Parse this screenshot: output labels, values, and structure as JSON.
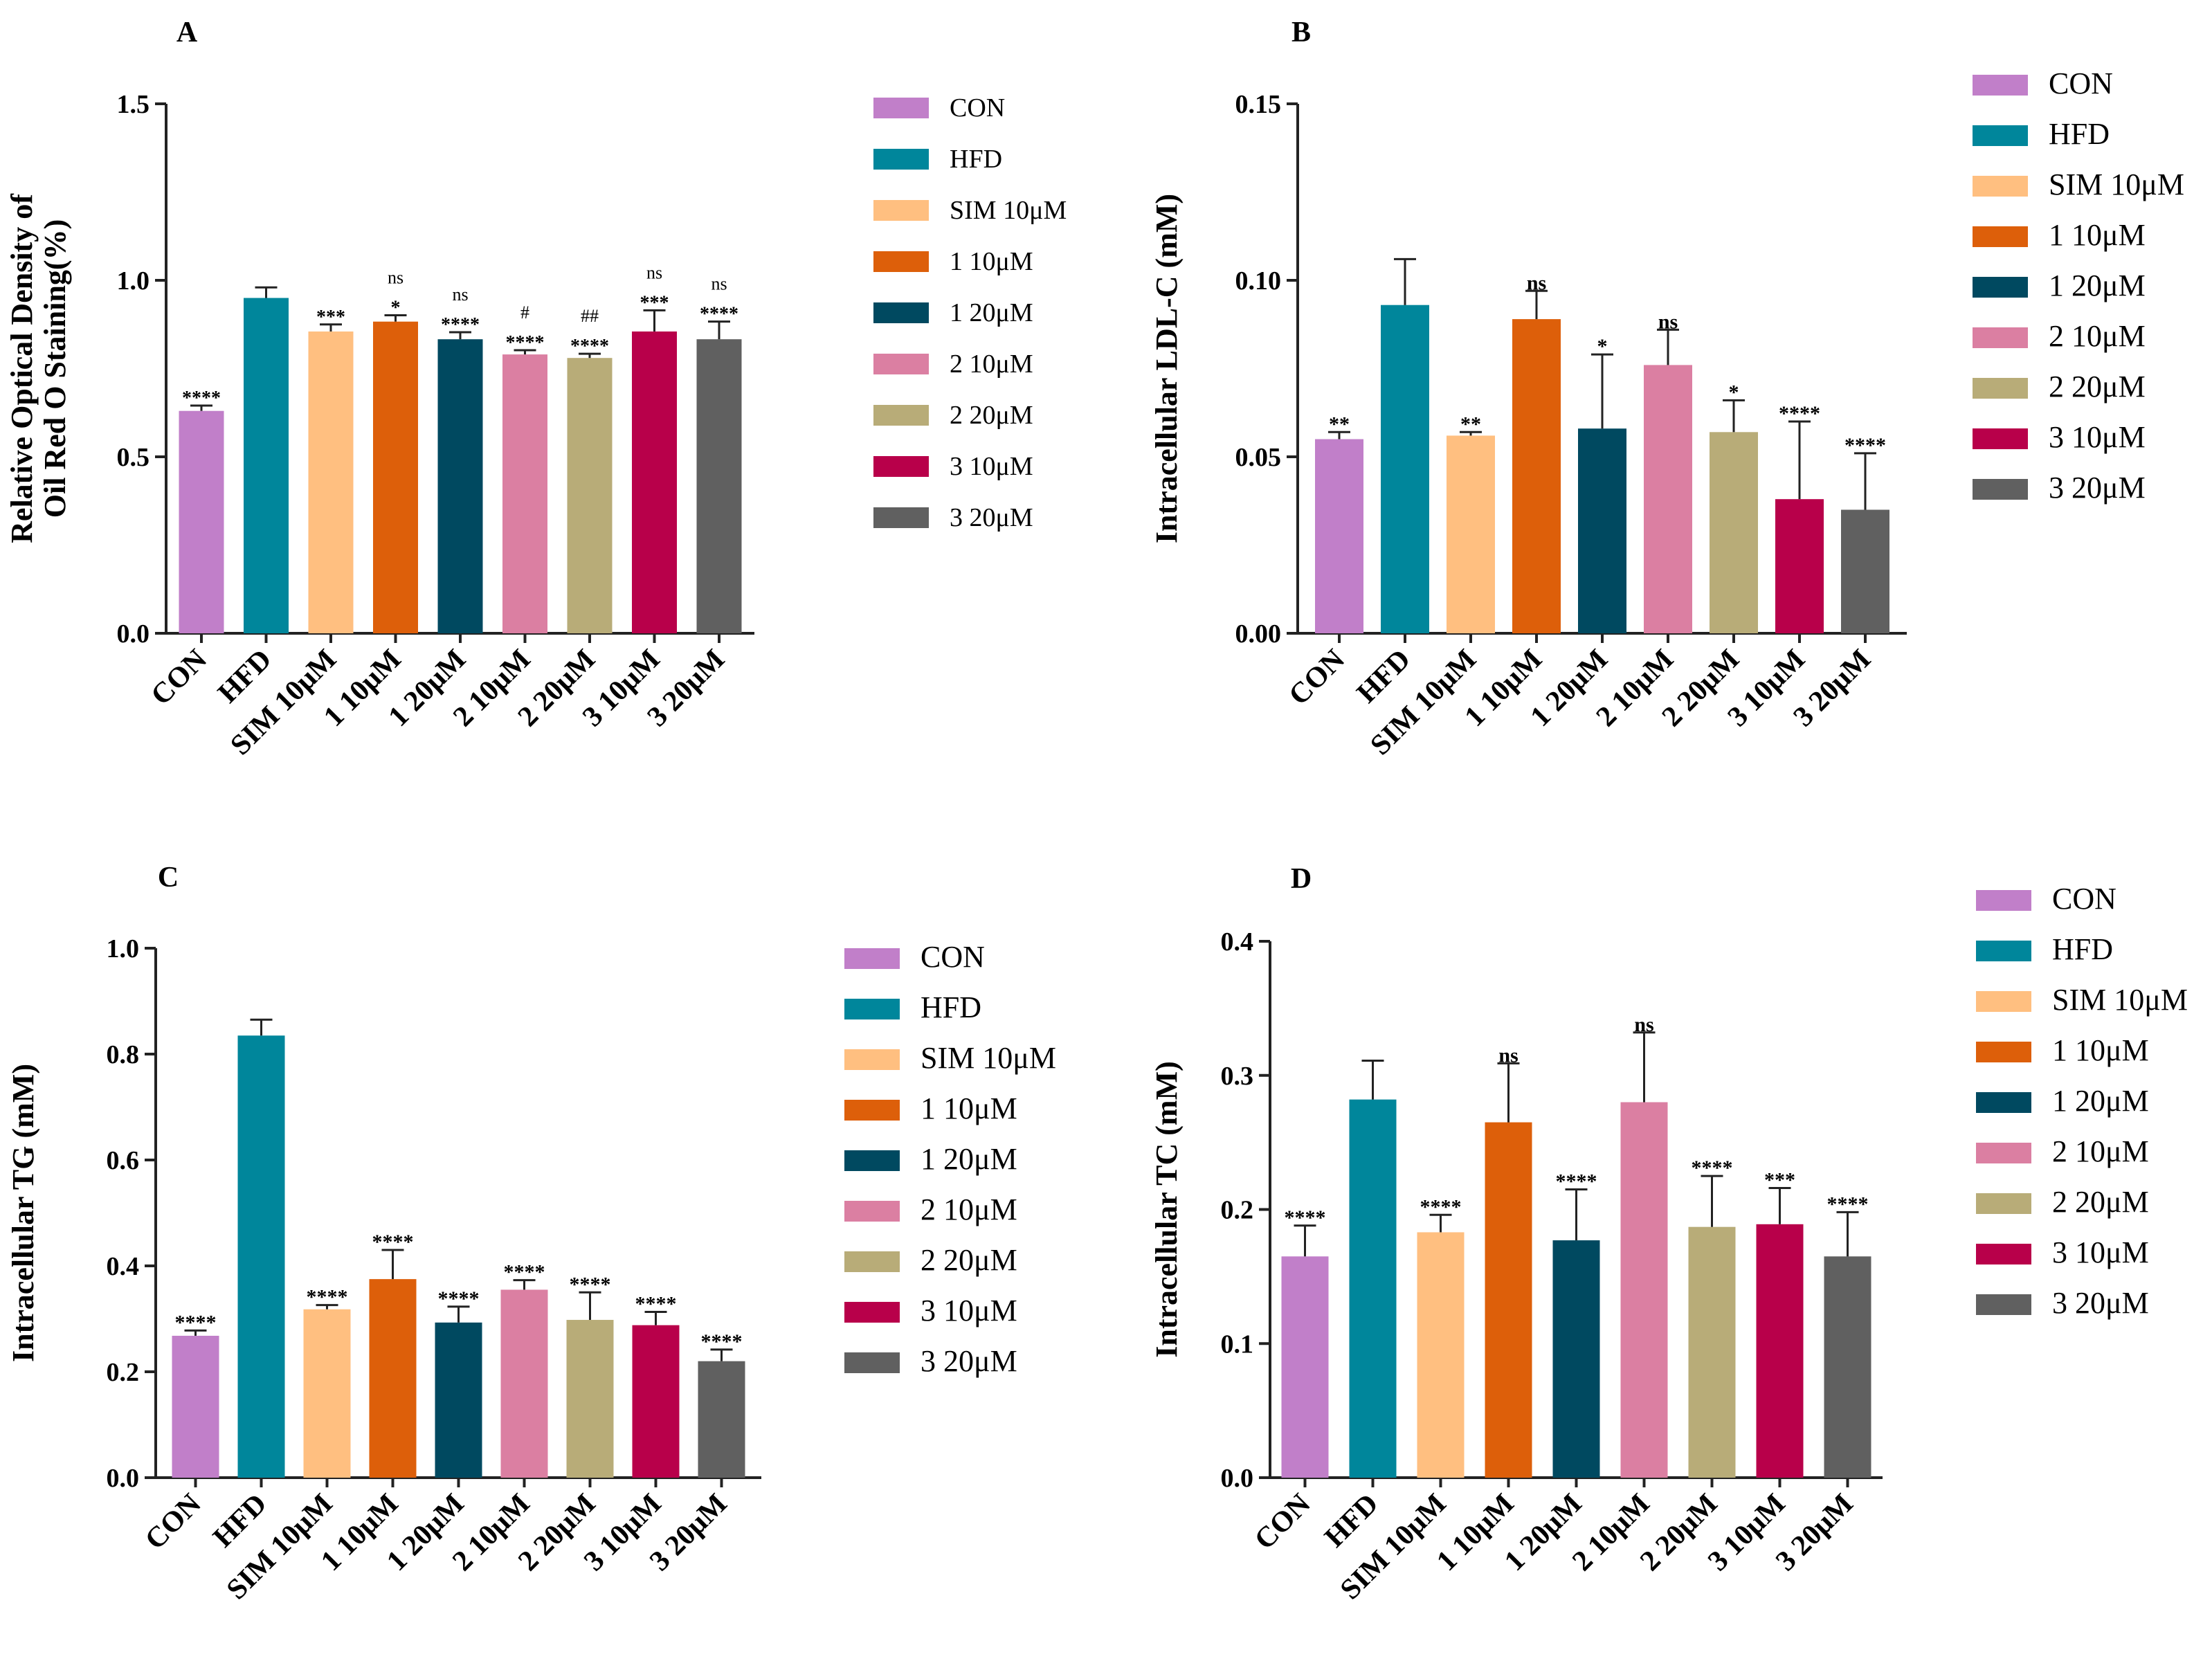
{
  "colors": {
    "CON": "#C17FC9",
    "HFD": "#00869B",
    "SIM 10μM": "#FFBF80",
    "1 10μM": "#DD5F0A",
    "1 20μM": "#004960",
    "2 10μM": "#DB7FA2",
    "2 20μM": "#B8AC78",
    "3 10μM": "#B8004A",
    "3 20μM": "#606060"
  },
  "chart_data": [
    {
      "panel": "A",
      "type": "bar",
      "ylabel_lines": [
        "Relative Optical Density of",
        "Oil Red O Staining(%)"
      ],
      "ylim": [
        0,
        1.5
      ],
      "yticks": [
        "0.0",
        "0.5",
        "1.0",
        "1.5"
      ],
      "categories": [
        "CON",
        "HFD",
        "SIM 10μM",
        "1 10μM",
        "1 20μM",
        "2 10μM",
        "2 20μM",
        "3 10μM",
        "3 20μM"
      ],
      "values": [
        0.63,
        0.95,
        0.855,
        0.883,
        0.833,
        0.79,
        0.78,
        0.855,
        0.833
      ],
      "errors": [
        0.015,
        0.03,
        0.02,
        0.018,
        0.02,
        0.012,
        0.012,
        0.06,
        0.05
      ],
      "annotations": [
        "****",
        "",
        "***",
        "*",
        "****",
        "****",
        "****",
        "***",
        "****"
      ],
      "annotations_top": [
        "",
        "",
        "",
        "ns",
        "ns",
        "#",
        "##",
        "ns",
        "ns"
      ],
      "legend": [
        "CON",
        "HFD",
        "SIM 10μM",
        "1 10μM",
        "1 20μM",
        "2 10μM",
        "2 20μM",
        "3 10μM",
        "3 20μM"
      ]
    },
    {
      "panel": "B",
      "type": "bar",
      "ylabel_lines": [
        "Intracellular LDL-C (mM)"
      ],
      "ylim": [
        0,
        0.15
      ],
      "yticks": [
        "0.00",
        "0.05",
        "0.10",
        "0.15"
      ],
      "categories": [
        "CON",
        "HFD",
        "SIM 10μM",
        "1 10μM",
        "1 20μM",
        "2 10μM",
        "2 20μM",
        "3 10μM",
        "3 20μM"
      ],
      "values": [
        0.055,
        0.093,
        0.056,
        0.089,
        0.058,
        0.076,
        0.057,
        0.038,
        0.035
      ],
      "errors": [
        0.002,
        0.013,
        0.001,
        0.008,
        0.021,
        0.01,
        0.009,
        0.022,
        0.016
      ],
      "annotations": [
        "**",
        "",
        "**",
        "ns",
        "*",
        "ns",
        "*",
        "****",
        "****"
      ],
      "annotations_top": [
        "",
        "",
        "",
        "",
        "",
        "",
        "",
        "",
        ""
      ],
      "legend": [
        "CON",
        "HFD",
        "SIM 10μM",
        "1 10μM",
        "1 20μM",
        "2 10μM",
        "2 20μM",
        "3 10μM",
        "3 20μM"
      ]
    },
    {
      "panel": "C",
      "type": "bar",
      "ylabel_lines": [
        "Intracellular TG (mM)"
      ],
      "ylim": [
        0,
        1.0
      ],
      "yticks": [
        "0.0",
        "0.2",
        "0.4",
        "0.6",
        "0.8",
        "1.0"
      ],
      "categories": [
        "CON",
        "HFD",
        "SIM 10μM",
        "1 10μM",
        "1 20μM",
        "2 10μM",
        "2 20μM",
        "3 10μM",
        "3 20μM"
      ],
      "values": [
        0.268,
        0.835,
        0.318,
        0.375,
        0.293,
        0.355,
        0.298,
        0.288,
        0.22
      ],
      "errors": [
        0.01,
        0.03,
        0.008,
        0.055,
        0.03,
        0.018,
        0.052,
        0.025,
        0.022
      ],
      "annotations": [
        "****",
        "",
        "****",
        "****",
        "****",
        "****",
        "****",
        "****",
        "****"
      ],
      "annotations_top": [
        "",
        "",
        "",
        "",
        "",
        "",
        "",
        "",
        ""
      ],
      "legend": [
        "CON",
        "HFD",
        "SIM 10μM",
        "1 10μM",
        "1 20μM",
        "2 10μM",
        "2 20μM",
        "3 10μM",
        "3 20μM"
      ]
    },
    {
      "panel": "D",
      "type": "bar",
      "ylabel_lines": [
        "Intracellular TC (mM)"
      ],
      "ylim": [
        0,
        0.4
      ],
      "yticks": [
        "0.0",
        "0.1",
        "0.2",
        "0.3",
        "0.4"
      ],
      "categories": [
        "CON",
        "HFD",
        "SIM 10μM",
        "1 10μM",
        "1 20μM",
        "2 10μM",
        "2 20μM",
        "3 10μM",
        "3 20μM"
      ],
      "values": [
        0.165,
        0.282,
        0.183,
        0.265,
        0.177,
        0.28,
        0.187,
        0.189,
        0.165
      ],
      "errors": [
        0.023,
        0.029,
        0.013,
        0.044,
        0.038,
        0.052,
        0.038,
        0.027,
        0.033
      ],
      "annotations": [
        "****",
        "",
        "****",
        "ns",
        "****",
        "ns",
        "****",
        "***",
        "****"
      ],
      "annotations_top": [
        "",
        "",
        "",
        "",
        "",
        "",
        "",
        "",
        ""
      ],
      "legend": [
        "CON",
        "HFD",
        "SIM 10μM",
        "1 10μM",
        "1 20μM",
        "2 10μM",
        "2 20μM",
        "3 10μM",
        "3 20μM"
      ]
    }
  ]
}
